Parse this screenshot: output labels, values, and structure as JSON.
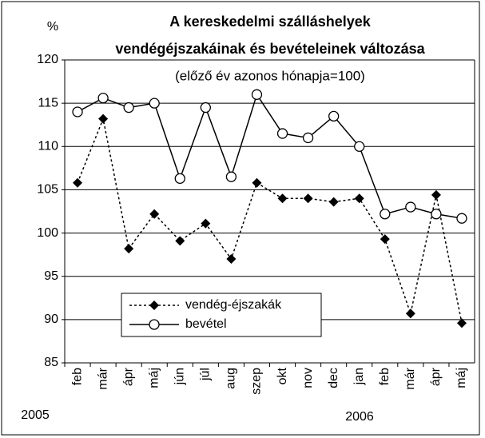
{
  "chart_data": {
    "type": "line",
    "title": "A kereskedelmi szálláshelyek",
    "subtitle": "vendégéjszakáinak és bevételeinek változása",
    "note": "(előző év azonos hónapja=100)",
    "y_label": "%",
    "categories": [
      "feb",
      "már",
      "ápr",
      "máj",
      "jún",
      "júl",
      "aug",
      "szep",
      "okt",
      "nov",
      "dec",
      "jan",
      "feb",
      "már",
      "ápr",
      "máj"
    ],
    "year_labels": [
      "2005",
      "2006"
    ],
    "series": [
      {
        "name": "vendég-éjszakák",
        "color": "#000000",
        "line_style": "dotted",
        "marker": "diamond",
        "values": [
          105.8,
          113.2,
          98.2,
          102.2,
          99.1,
          101.1,
          97.0,
          105.8,
          104.0,
          104.0,
          103.6,
          104.0,
          99.3,
          90.7,
          104.4,
          89.6
        ]
      },
      {
        "name": "bevétel",
        "color": "#000000",
        "line_style": "solid",
        "marker": "circle",
        "values": [
          114.0,
          115.6,
          114.5,
          115.0,
          106.3,
          114.5,
          106.5,
          116.0,
          111.5,
          111.0,
          113.5,
          110.0,
          102.2,
          103.0,
          102.2,
          101.7
        ]
      }
    ],
    "ylim": [
      85,
      120
    ],
    "yticks": [
      85,
      90,
      95,
      100,
      105,
      110,
      115,
      120
    ],
    "grid": true,
    "legend": "lower left"
  }
}
